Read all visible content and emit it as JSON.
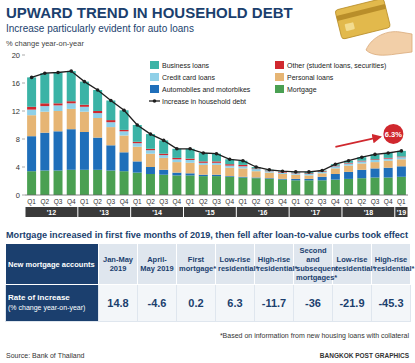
{
  "chart_data": {
    "type": "bar",
    "title": "UPWARD TREND IN HOUSEHOLD DEBT",
    "subtitle": "Increase particularly evident for auto loans",
    "y_label": "% change year-on-year",
    "categories": [
      "Q1",
      "Q2",
      "Q3",
      "Q4",
      "Q1",
      "Q2",
      "Q3",
      "Q4",
      "Q1",
      "Q2",
      "Q3",
      "Q4",
      "Q1",
      "Q2",
      "Q3",
      "Q4",
      "Q1",
      "Q2",
      "Q3",
      "Q4",
      "Q1",
      "Q2",
      "Q3",
      "Q4",
      "Q1",
      "Q2",
      "Q3",
      "Q4",
      "Q1"
    ],
    "category_groups": [
      "'12",
      "'13",
      "'14",
      "'15",
      "'16",
      "'17",
      "'18",
      "'19"
    ],
    "stacked": true,
    "grid": false,
    "legend": "top-right",
    "ylim": [
      0,
      20
    ],
    "yticks": [
      0,
      4,
      8,
      12,
      16,
      20
    ],
    "series": [
      {
        "name": "Mortgage",
        "color": "#4aa052",
        "values": [
          3.4,
          3.5,
          3.5,
          3.6,
          3.6,
          3.6,
          3.5,
          3.4,
          3.2,
          3.0,
          2.9,
          2.8,
          2.8,
          2.7,
          2.7,
          2.6,
          2.5,
          2.4,
          2.3,
          2.2,
          2.1,
          2.1,
          2.1,
          2.2,
          2.3,
          2.4,
          2.5,
          2.5,
          2.6
        ]
      },
      {
        "name": "Automobiles and motorbikes",
        "color": "#1f6fba",
        "values": [
          5.0,
          5.4,
          5.6,
          5.8,
          5.4,
          4.6,
          3.6,
          2.7,
          1.6,
          1.0,
          0.7,
          0.4,
          0.3,
          0.2,
          0.2,
          0.1,
          0.1,
          0.1,
          0.1,
          0.1,
          0.2,
          0.2,
          0.5,
          0.8,
          1.0,
          1.2,
          1.3,
          1.4,
          1.5
        ]
      },
      {
        "name": "Personal loans",
        "color": "#e6b574",
        "values": [
          3.0,
          3.0,
          2.9,
          2.9,
          2.9,
          2.8,
          2.6,
          2.4,
          2.1,
          1.9,
          1.7,
          1.5,
          1.5,
          1.4,
          1.4,
          1.2,
          1.2,
          0.9,
          0.8,
          0.7,
          0.6,
          0.5,
          0.5,
          0.8,
          0.9,
          0.9,
          0.9,
          1.0,
          1.0
        ]
      },
      {
        "name": "Credit card loans",
        "color": "#8fd0e8",
        "values": [
          0.8,
          0.8,
          0.8,
          0.8,
          0.7,
          0.7,
          0.7,
          0.6,
          0.5,
          0.5,
          0.4,
          0.4,
          0.4,
          0.3,
          0.3,
          0.3,
          0.3,
          0.3,
          0.2,
          0.2,
          0.2,
          0.2,
          0.2,
          0.3,
          0.3,
          0.3,
          0.3,
          0.3,
          0.3
        ]
      },
      {
        "name": "Other (student loans, securities)",
        "color": "#d0282e",
        "values": [
          0.4,
          0.4,
          0.3,
          0.3,
          0.3,
          0.3,
          0.3,
          0.2,
          0.2,
          0.2,
          0.2,
          0.2,
          0.2,
          0.2,
          0.2,
          0.2,
          0.2,
          0.1,
          0.1,
          0.1,
          0.1,
          0.1,
          0.1,
          0.1,
          0.1,
          0.1,
          0.1,
          0.1,
          0.1
        ]
      },
      {
        "name": "Business loans",
        "color": "#3bb3a6",
        "values": [
          4.2,
          4.3,
          4.4,
          4.3,
          3.3,
          3.0,
          2.8,
          2.8,
          2.4,
          2.1,
          1.9,
          1.3,
          1.4,
          1.2,
          1.1,
          0.7,
          0.6,
          0.2,
          0.1,
          0.1,
          0.1,
          0.2,
          0.1,
          0.2,
          0.3,
          0.5,
          0.7,
          0.7,
          0.8
        ]
      },
      {
        "name": "Increase in household debt",
        "type": "line",
        "color": "#1e1e1e",
        "marker": "circle",
        "values": [
          16.8,
          17.4,
          17.5,
          17.7,
          16.2,
          15.0,
          13.5,
          12.1,
          10.0,
          8.7,
          7.8,
          6.6,
          6.6,
          6.0,
          5.9,
          5.1,
          4.9,
          4.0,
          3.6,
          3.4,
          3.3,
          3.3,
          3.5,
          4.4,
          4.9,
          5.4,
          5.8,
          6.0,
          6.3
        ],
        "value_labels": [
          null,
          null,
          null,
          null,
          null,
          null,
          null,
          null,
          null,
          null,
          null,
          null,
          null,
          null,
          null,
          null,
          null,
          null,
          null,
          null,
          null,
          null,
          null,
          null,
          null,
          null,
          null,
          null,
          "6.3%"
        ]
      }
    ]
  },
  "table": {
    "title": "Mortgage increased in first five months of 2019, then fell after loan-to-value curbs took effect",
    "header": [
      "New mortgage accounts",
      "Jan-May 2019",
      "April-May 2019",
      "First mortgage*",
      "Low-rise residential*",
      "High-rise residential*",
      "Second and subsequent mortgages*",
      "Low-rise residential*",
      "High-rise residential*"
    ],
    "rows": [
      {
        "label": "Rate of increase",
        "sublabel": "(% change year-on-year)",
        "values": [
          14.8,
          -4.6,
          0.2,
          6.3,
          -11.7,
          -36,
          -21.9,
          -45.3
        ]
      }
    ]
  },
  "footer": {
    "source": "Source: Bank of Thailand",
    "note": "*Based on information from new housing loans with collateral",
    "credit": "BANGKOK POST GRAPHICS"
  }
}
